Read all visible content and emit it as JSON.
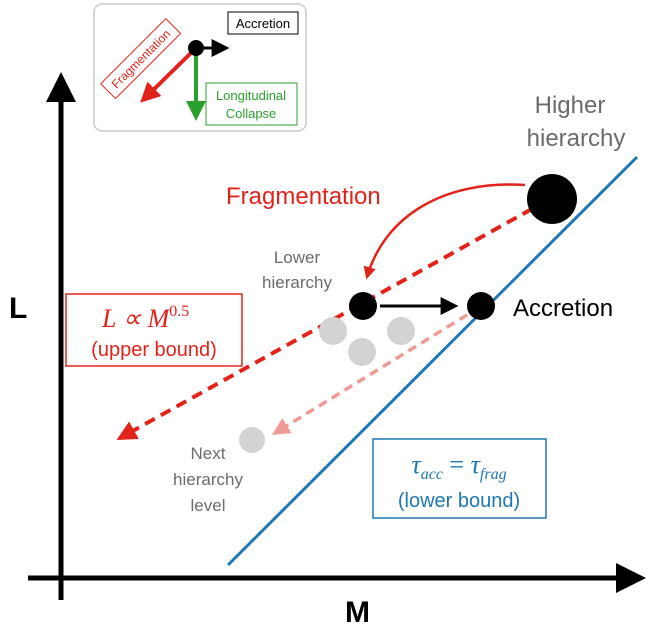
{
  "axes": {
    "x_label": "M",
    "y_label": "L"
  },
  "inset": {
    "accretion_label": "Accretion",
    "fragmentation_label": "Fragmentation",
    "collapse_line1": "Longitudinal",
    "collapse_line2": "Collapse"
  },
  "labels": {
    "higher_line1": "Higher",
    "higher_line2": "hierarchy",
    "fragmentation": "Fragmentation",
    "lower_line1": "Lower",
    "lower_line2": "hierarchy",
    "accretion": "Accretion",
    "next_line1": "Next",
    "next_line2": "hierarchy",
    "next_line3": "level"
  },
  "upper_box": {
    "formula_main": "L ∝ M",
    "formula_exp": "0.5",
    "note": "(upper bound)"
  },
  "lower_box": {
    "tau": "τ",
    "sub_acc": "acc",
    "equals": " = ",
    "sub_frag": "frag",
    "note": "(lower bound)"
  },
  "colors": {
    "red": "#e2231a",
    "light_red": "#f09a96",
    "blue": "#1f77b4",
    "green": "#2ca02c",
    "gray_text": "#6b6b6b",
    "gray_dot": "#d3d3d3"
  }
}
